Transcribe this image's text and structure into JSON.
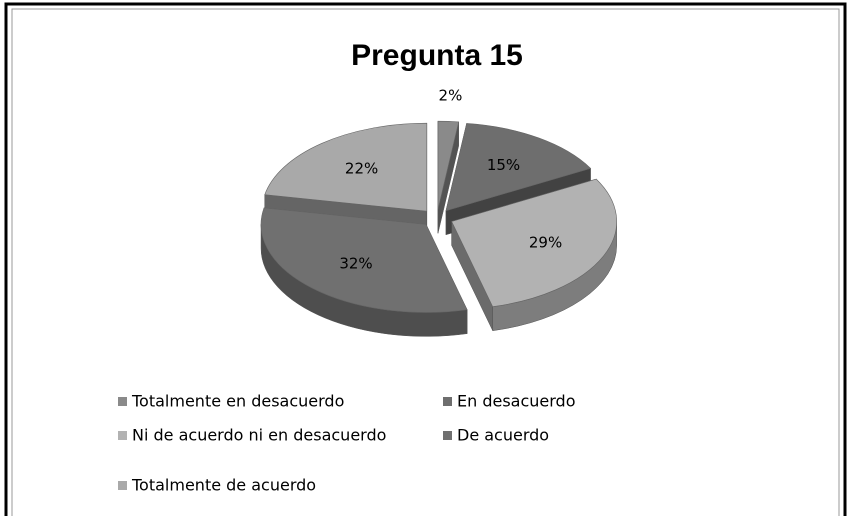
{
  "chart_data": {
    "type": "pie3d",
    "title": "Pregunta 15",
    "categories": [
      "Totalmente en desacuerdo",
      "En desacuerdo",
      "Ni de acuerdo ni en desacuerdo",
      "De acuerdo",
      "Totalmente de acuerdo"
    ],
    "values": [
      2,
      15,
      29,
      32,
      22
    ],
    "value_labels": [
      "2%",
      "15%",
      "29%",
      "32%",
      "22%"
    ],
    "colors": [
      "#8a8a8a",
      "#6e6e6e",
      "#b2b2b2",
      "#707070",
      "#a9a9a9"
    ],
    "legend": "bottom"
  }
}
